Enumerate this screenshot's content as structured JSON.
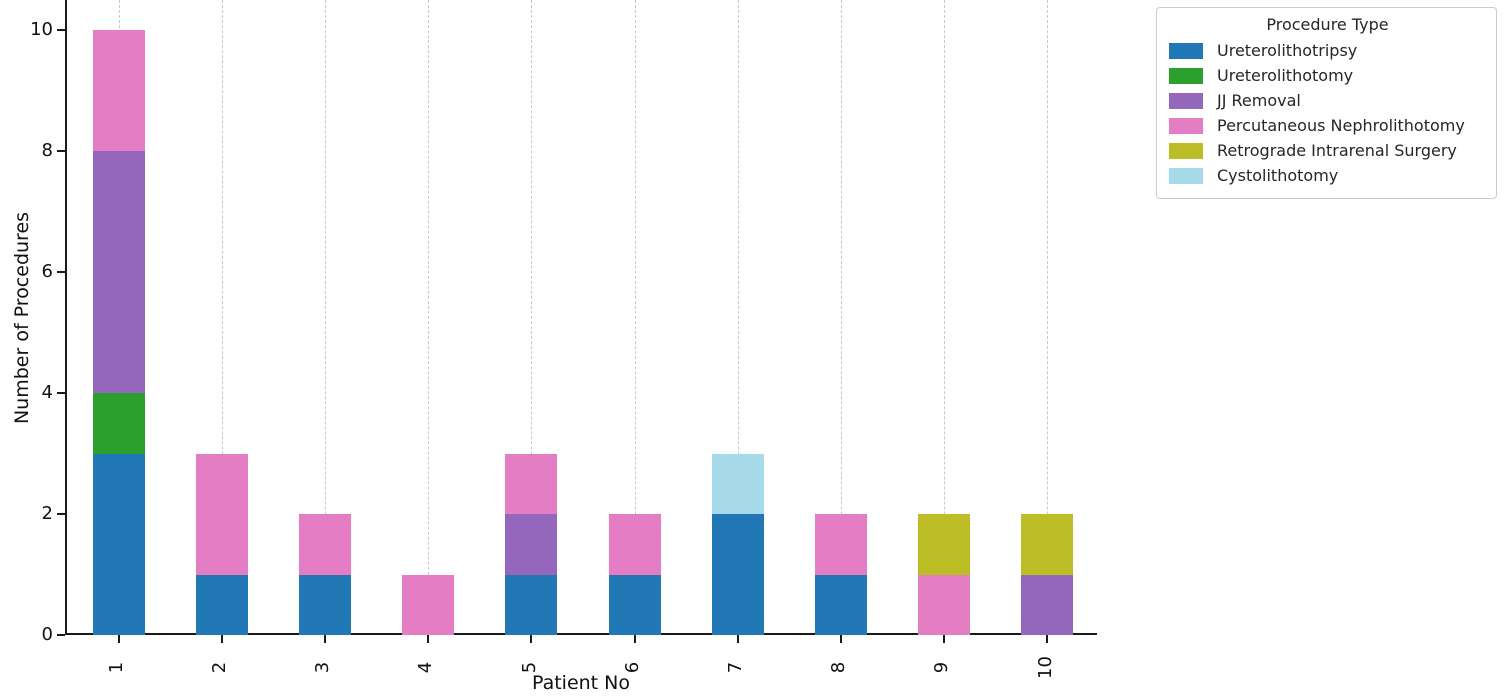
{
  "chart_data": {
    "type": "bar",
    "stacked": true,
    "title": "",
    "xlabel": "Patient No",
    "ylabel": "Number of Procedures",
    "categories": [
      "1",
      "2",
      "3",
      "4",
      "5",
      "6",
      "7",
      "8",
      "9",
      "10"
    ],
    "yticks": [
      0,
      2,
      4,
      6,
      8,
      10
    ],
    "ylim": [
      0,
      10.5
    ],
    "grid": "vertical dashed gridlines at each category",
    "legend_position": "outside upper right",
    "legend_title": "Procedure Type",
    "series": [
      {
        "name": "Ureterolithotripsy",
        "color": "#2278b5",
        "values": [
          3,
          1,
          1,
          0,
          1,
          1,
          2,
          1,
          0,
          0
        ]
      },
      {
        "name": "Ureterolithotomy",
        "color": "#2ca02c",
        "values": [
          1,
          0,
          0,
          0,
          0,
          0,
          0,
          0,
          0,
          0
        ]
      },
      {
        "name": "JJ Removal",
        "color": "#9467bd",
        "values": [
          4,
          0,
          0,
          0,
          1,
          0,
          0,
          0,
          0,
          1
        ]
      },
      {
        "name": "Percutaneous Nephrolithotomy",
        "color": "#e47dc4",
        "values": [
          2,
          2,
          1,
          1,
          1,
          1,
          0,
          1,
          1,
          0
        ]
      },
      {
        "name": "Retrograde Intrarenal Surgery",
        "color": "#bcbd27",
        "values": [
          0,
          0,
          0,
          0,
          0,
          0,
          0,
          0,
          1,
          1
        ]
      },
      {
        "name": "Cystolithotomy",
        "color": "#a8dbe9",
        "values": [
          0,
          0,
          0,
          0,
          0,
          0,
          1,
          0,
          0,
          0
        ]
      }
    ],
    "colors": {
      "axis": "#1a1a1a",
      "grid": "#c8c8c8",
      "background": "#ffffff",
      "legend_border": "#cccccc"
    }
  }
}
